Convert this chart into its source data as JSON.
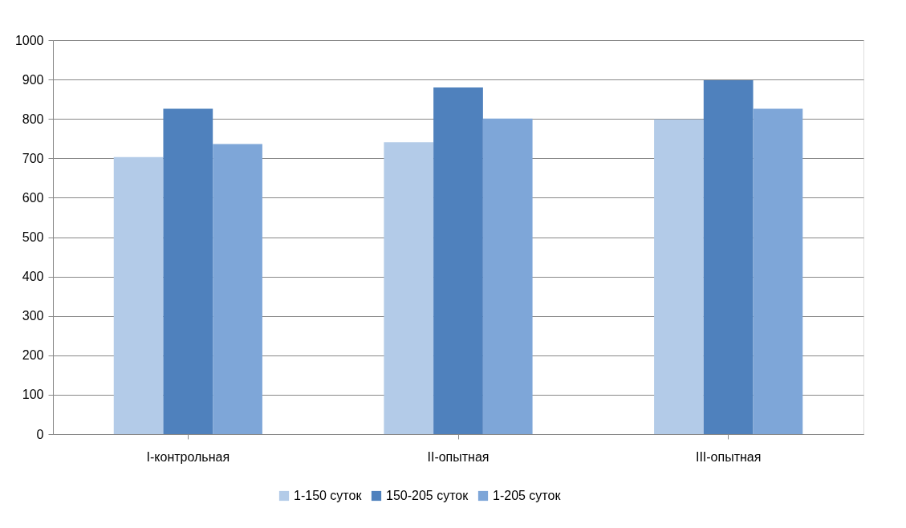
{
  "chart_data": {
    "type": "bar",
    "categories": [
      "I-контрольная",
      "II-опытная",
      "III-опытная"
    ],
    "series": [
      {
        "name": "1-150 суток",
        "color": "#b3cbe8",
        "values": [
          703,
          741,
          799
        ]
      },
      {
        "name": "150-205 суток",
        "color": "#4f81bd",
        "values": [
          826,
          880,
          898
        ]
      },
      {
        "name": "1-205 суток",
        "color": "#7ea6d8",
        "values": [
          736,
          801,
          826
        ]
      }
    ],
    "ylim": [
      0,
      1000
    ],
    "yticks": [
      0,
      100,
      200,
      300,
      400,
      500,
      600,
      700,
      800,
      900,
      1000
    ],
    "grid": "y",
    "legend": "bottom"
  }
}
